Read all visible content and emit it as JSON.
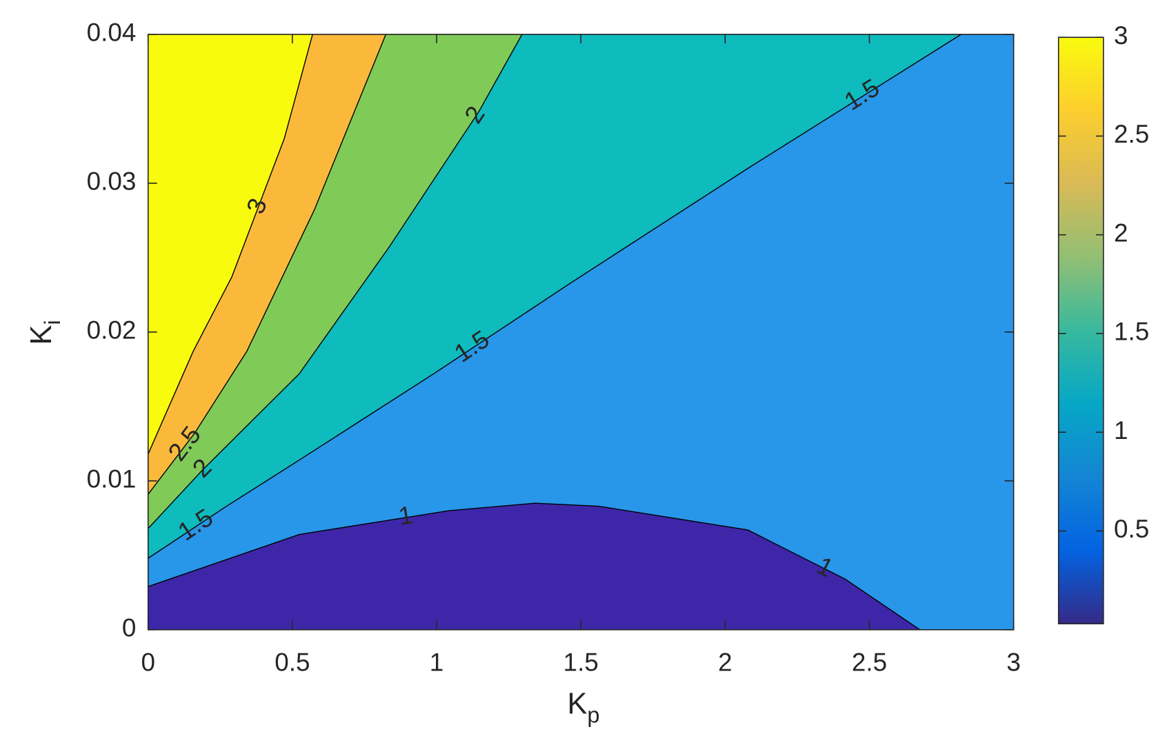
{
  "chart_data": {
    "type": "contour",
    "xlabel": "K",
    "xlabel_sub": "p",
    "ylabel": "K",
    "ylabel_sub": "i",
    "xlim": [
      0,
      3
    ],
    "xticks": [
      0,
      0.5,
      1,
      1.5,
      2,
      2.5,
      3
    ],
    "ylim": [
      0,
      0.04
    ],
    "yticks": [
      0,
      0.01,
      0.02,
      0.03,
      0.04
    ],
    "band_colors": [
      "#3e26a8",
      "#2896e9",
      "#0ebbbd",
      "#80cb58",
      "#fbb93c",
      "#f9fb0e"
    ],
    "line_color": "#000000",
    "contours": [
      {
        "level": 1,
        "x": [
          0,
          0.524,
          1.043,
          1.341,
          1.561,
          2.079,
          2.416,
          2.675
        ],
        "y": [
          0.0029,
          0.0064,
          0.008,
          0.0085,
          0.0083,
          0.0067,
          0.0034,
          0
        ]
      },
      {
        "level": 1.5,
        "x": [
          0,
          0.264,
          0.524,
          0.99,
          1.457,
          2.079,
          2.818
        ],
        "y": [
          0.0048,
          0.0082,
          0.0114,
          0.0172,
          0.0232,
          0.031,
          0.04
        ]
      },
      {
        "level": 2,
        "x": [
          0,
          0.187,
          0.524,
          0.835,
          1.146,
          1.296
        ],
        "y": [
          0.0068,
          0.0107,
          0.0172,
          0.0257,
          0.0348,
          0.04
        ]
      },
      {
        "level": 2.5,
        "x": [
          0,
          0.161,
          0.342,
          0.576,
          0.824
        ],
        "y": [
          0.0091,
          0.0132,
          0.0187,
          0.0282,
          0.04
        ]
      },
      {
        "level": 3,
        "x": [
          0,
          0.156,
          0.29,
          0.472,
          0.57
        ],
        "y": [
          0.0118,
          0.0187,
          0.0237,
          0.033,
          0.04
        ]
      }
    ],
    "colorbar": {
      "clim": [
        0.03,
        3
      ],
      "ticks": [
        0.5,
        1,
        1.5,
        2,
        2.5,
        3
      ],
      "colormap": [
        "#352a87",
        "#0363e1",
        "#1485d4",
        "#06a7c6",
        "#38b99e",
        "#92bf73",
        "#d9ba56",
        "#fcce2e",
        "#f9fb0e"
      ]
    }
  }
}
